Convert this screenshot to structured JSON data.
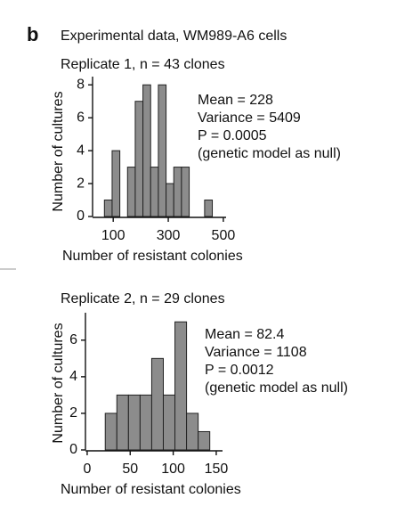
{
  "panel_label": "b",
  "heading": "Experimental data, WM989-A6 cells",
  "chart_data": [
    {
      "type": "histogram",
      "title": "Replicate 1, n = 43 clones",
      "bins": [
        68,
        96,
        124,
        152,
        180,
        208,
        236,
        264,
        292,
        320,
        348,
        376,
        404,
        432,
        460
      ],
      "values": [
        1,
        4,
        0,
        3,
        7,
        8,
        3,
        8,
        2,
        3,
        3,
        0,
        0,
        1
      ],
      "color": "#8c8c8c",
      "xlim": [
        25,
        510
      ],
      "xticks": [
        100,
        300,
        500
      ],
      "ylim": [
        0,
        8.5
      ],
      "yticks": [
        0,
        2,
        4,
        6,
        8
      ],
      "xlabel": "Number of resistant colonies",
      "ylabel": "Number of cultures",
      "annotations": [
        "Mean = 228",
        "Variance = 5409",
        "P = 0.0005",
        "(genetic model as null)"
      ]
    },
    {
      "type": "histogram",
      "title": "Replicate 2, n = 29 clones",
      "bins": [
        21,
        34.5,
        48,
        61.5,
        75,
        88.5,
        102,
        115.5,
        129,
        142.5
      ],
      "values": [
        2,
        3,
        3,
        3,
        5,
        3,
        7,
        2,
        1
      ],
      "color": "#8c8c8c",
      "xlim": [
        -2,
        157.3
      ],
      "xticks": [
        0,
        50,
        100,
        150
      ],
      "ylim": [
        0,
        7.5
      ],
      "yticks": [
        0,
        2,
        4,
        6
      ],
      "xlabel": "Number of resistant colonies",
      "ylabel": "Number of cultures",
      "annotations": [
        "Mean = 82.4",
        "Variance = 1108",
        "P = 0.0012",
        "(genetic model as null)"
      ]
    }
  ]
}
